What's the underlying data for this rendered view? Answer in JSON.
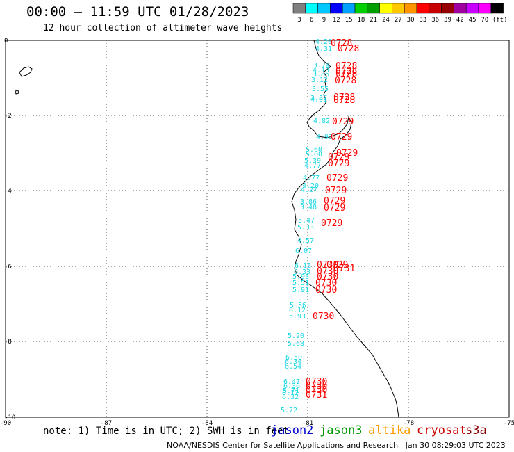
{
  "title": "00:00 – 11:59 UTC 01/28/2023",
  "subtitle": "12 hour collection of altimeter wave heights",
  "colorbar": {
    "colors": [
      "#7f7f7f",
      "#00ffff",
      "#00c8ff",
      "#0000ff",
      "#00a0ff",
      "#00d000",
      "#00a000",
      "#ffff00",
      "#ffc800",
      "#ff9600",
      "#ff0000",
      "#c80000",
      "#960000",
      "#a000a0",
      "#c800ff",
      "#ff00ff",
      "#000000"
    ],
    "labels": [
      "3",
      "6",
      "9",
      "12",
      "15",
      "18",
      "21",
      "24",
      "27",
      "30",
      "33",
      "36",
      "39",
      "42",
      "45",
      "70",
      "(ft)"
    ]
  },
  "axes": {
    "x_ticks": [
      "-90",
      "-87",
      "-84",
      "-81",
      "-78",
      "-75"
    ],
    "y_ticks": [
      "0",
      "-2",
      "-4",
      "-6",
      "-8",
      "-10"
    ]
  },
  "swh_labels": [
    "4.20",
    "4.31",
    "3.74",
    "4.13",
    "3.86",
    "3.12",
    "3.55",
    "3.37",
    "4.01",
    "4.82",
    "4.93",
    "5.60",
    "5.00",
    "5.39",
    "4.77",
    "4.77",
    "4.20",
    "4.27",
    "3.86",
    "3.48",
    "5.47",
    "5.33",
    "4.57",
    "6.07",
    "6.18",
    "6.33",
    "5.93",
    "5.51",
    "5.91",
    "5.56",
    "6.12",
    "5.93",
    "5.20",
    "5.68",
    "6.50",
    "6.34",
    "6.54",
    "6.47",
    "6.36",
    "5.71",
    "6.12",
    "6.32",
    "5.72"
  ],
  "time_labels": [
    "0728",
    "0728",
    "0728",
    "0728",
    "0728",
    "0728",
    "0728",
    "0728",
    "0729",
    "0729",
    "0729",
    "0729",
    "0729",
    "0729",
    "0729",
    "0729",
    "0729",
    "0729",
    "0729",
    "0730",
    "0730",
    "0730",
    "0730",
    "0730",
    "0730",
    "0730",
    "0730",
    "0730",
    "0731",
    "0731"
  ],
  "note": "note: 1) Time is in UTC; 2) SWH is in feet",
  "satellites": [
    {
      "name": "jason2",
      "color": "#0000cc"
    },
    {
      "name": "jason3",
      "color": "#009900"
    },
    {
      "name": "altika",
      "color": "#ff9900"
    },
    {
      "name": "cryosat",
      "color": "#cc0000"
    },
    {
      "name": "s3a",
      "color": "#8b0000"
    }
  ],
  "credit": "NOAA/NESDIS Center for Satellite Applications and Research   Jan 30 08:29:03 UTC 2023"
}
